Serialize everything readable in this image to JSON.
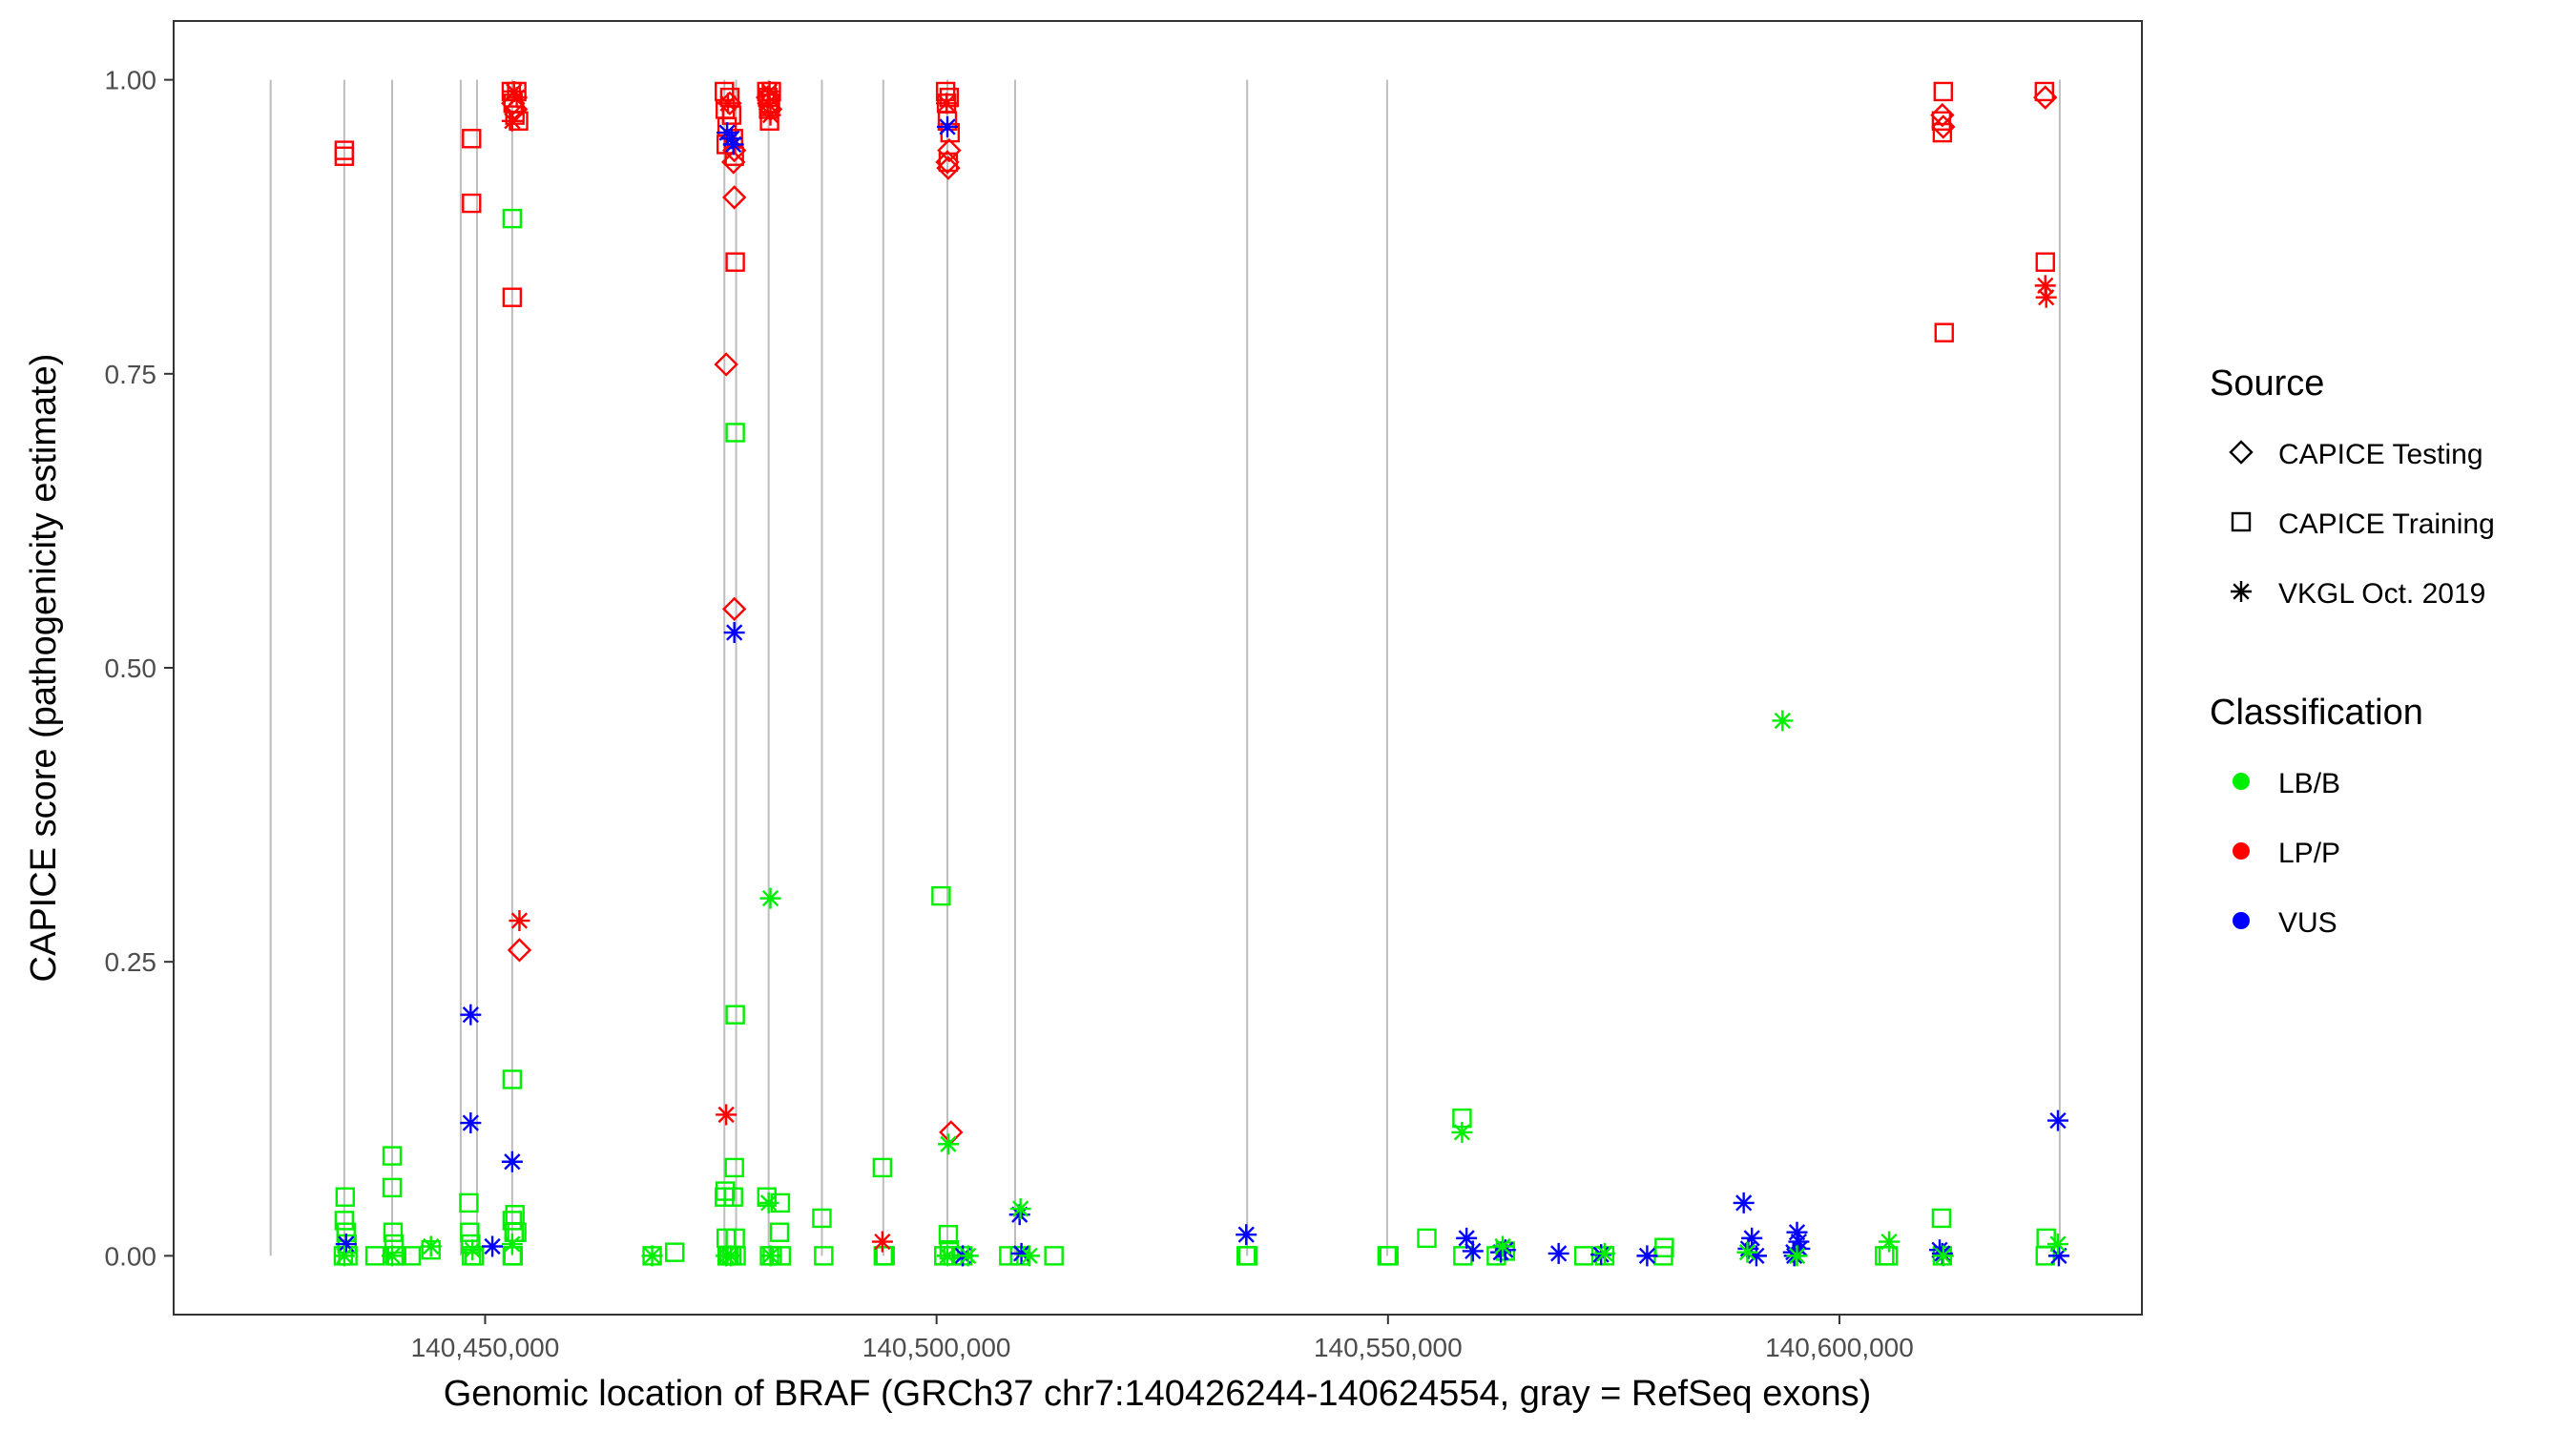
{
  "chart_data": {
    "type": "scatter",
    "title": "",
    "xlabel": "Genomic location of BRAF (GRCh37 chr7:140426244-140624554, gray = RefSeq exons)",
    "ylabel": "CAPICE score (pathogenicity estimate)",
    "xlim": [
      140415500,
      140633500
    ],
    "ylim": [
      -0.05,
      1.05
    ],
    "x_ticks": [
      {
        "value": 140450000,
        "label": "140,450,000"
      },
      {
        "value": 140500000,
        "label": "140,500,000"
      },
      {
        "value": 140550000,
        "label": "140,550,000"
      },
      {
        "value": 140600000,
        "label": "140,600,000"
      }
    ],
    "y_ticks": [
      {
        "value": 0,
        "label": "0.00"
      },
      {
        "value": 0.25,
        "label": "0.25"
      },
      {
        "value": 0.5,
        "label": "0.50"
      },
      {
        "value": 0.75,
        "label": "0.75"
      },
      {
        "value": 1,
        "label": "1.00"
      }
    ],
    "grid": false,
    "exons": [
      140426244,
      140434400,
      140439700,
      140447300,
      140449100,
      140453000,
      140476500,
      140477800,
      140481400,
      140487300,
      140494100,
      140501200,
      140508700,
      140534400,
      140549900,
      140624400
    ],
    "legends": [
      {
        "title": "Source",
        "kind": "shape",
        "position": "right",
        "entries": [
          {
            "label": "CAPICE Testing",
            "marker": "diamond"
          },
          {
            "label": "CAPICE Training",
            "marker": "square"
          },
          {
            "label": "VKGL Oct. 2019",
            "marker": "asterisk"
          }
        ]
      },
      {
        "title": "Classification",
        "kind": "color",
        "position": "right",
        "entries": [
          {
            "label": "LB/B",
            "color": "#00ee00"
          },
          {
            "label": "LP/P",
            "color": "#ff0000"
          },
          {
            "label": "VUS",
            "color": "#0000ff"
          }
        ]
      }
    ],
    "series": [
      {
        "source": "CAPICE Training",
        "marker": "square",
        "classification": "LP/P",
        "color": "#ff0000",
        "points": [
          [
            140434400,
            0.94
          ],
          [
            140434400,
            0.935
          ],
          [
            140448500,
            0.95
          ],
          [
            140448500,
            0.895
          ],
          [
            140452900,
            0.99
          ],
          [
            140453100,
            0.98
          ],
          [
            140453300,
            0.97
          ],
          [
            140453500,
            0.99
          ],
          [
            140453700,
            0.965
          ],
          [
            140453000,
            0.815
          ],
          [
            140476500,
            0.99
          ],
          [
            140476600,
            0.975
          ],
          [
            140476800,
            0.96
          ],
          [
            140476700,
            0.945
          ],
          [
            140477100,
            0.985
          ],
          [
            140477300,
            0.97
          ],
          [
            140477500,
            0.95
          ],
          [
            140477600,
            0.935
          ],
          [
            140477700,
            0.845
          ],
          [
            140481200,
            0.99
          ],
          [
            140481300,
            0.985
          ],
          [
            140481400,
            0.975
          ],
          [
            140481500,
            0.965
          ],
          [
            140481600,
            0.98
          ],
          [
            140481700,
            0.99
          ],
          [
            140501000,
            0.99
          ],
          [
            140501100,
            0.98
          ],
          [
            140501200,
            0.965
          ],
          [
            140501300,
            0.93
          ],
          [
            140501400,
            0.985
          ],
          [
            140501500,
            0.955
          ],
          [
            140611500,
            0.99
          ],
          [
            140611300,
            0.965
          ],
          [
            140611400,
            0.955
          ],
          [
            140611600,
            0.785
          ],
          [
            140622700,
            0.99
          ],
          [
            140622800,
            0.845
          ]
        ]
      },
      {
        "source": "CAPICE Training",
        "marker": "square",
        "classification": "LB/B",
        "color": "#00ee00",
        "points": [
          [
            140434500,
            0.05
          ],
          [
            140434400,
            0.03
          ],
          [
            140434600,
            0.02
          ],
          [
            140434700,
            0.01
          ],
          [
            140434300,
            0.0
          ],
          [
            140434800,
            0.0
          ],
          [
            140437800,
            0.0
          ],
          [
            140439700,
            0.085
          ],
          [
            140439700,
            0.058
          ],
          [
            140439800,
            0.02
          ],
          [
            140439900,
            0.01
          ],
          [
            140440000,
            0.0
          ],
          [
            140440200,
            0.0
          ],
          [
            140441800,
            0.0
          ],
          [
            140444000,
            0.005
          ],
          [
            140448200,
            0.045
          ],
          [
            140448300,
            0.02
          ],
          [
            140448400,
            0.01
          ],
          [
            140448500,
            0.0
          ],
          [
            140448800,
            0.0
          ],
          [
            140453000,
            0.882
          ],
          [
            140453000,
            0.15
          ],
          [
            140453300,
            0.035
          ],
          [
            140453000,
            0.03
          ],
          [
            140453200,
            0.02
          ],
          [
            140453500,
            0.02
          ],
          [
            140453000,
            0.0
          ],
          [
            140453100,
            0.0
          ],
          [
            140468500,
            0.0
          ],
          [
            140471000,
            0.003
          ],
          [
            140476600,
            0.055
          ],
          [
            140476500,
            0.05
          ],
          [
            140476700,
            0.015
          ],
          [
            140476800,
            0.0
          ],
          [
            140477000,
            0.0
          ],
          [
            140477300,
            0.0
          ],
          [
            140477700,
            0.7
          ],
          [
            140477700,
            0.205
          ],
          [
            140477600,
            0.075
          ],
          [
            140477500,
            0.05
          ],
          [
            140477700,
            0.015
          ],
          [
            140477800,
            0.0
          ],
          [
            140481200,
            0.05
          ],
          [
            140481500,
            0.0
          ],
          [
            140481800,
            0.0
          ],
          [
            140482700,
            0.045
          ],
          [
            140482600,
            0.02
          ],
          [
            140482800,
            0.0
          ],
          [
            140487300,
            0.032
          ],
          [
            140487500,
            0.0
          ],
          [
            140494000,
            0.075
          ],
          [
            140494100,
            0.0
          ],
          [
            140494300,
            0.0
          ],
          [
            140500500,
            0.306
          ],
          [
            140500800,
            0.0
          ],
          [
            140501300,
            0.018
          ],
          [
            140501400,
            0.005
          ],
          [
            140501800,
            0.0
          ],
          [
            140502900,
            0.0
          ],
          [
            140508000,
            0.0
          ],
          [
            140509200,
            0.0
          ],
          [
            140513000,
            0.0
          ],
          [
            140534300,
            0.0
          ],
          [
            140534500,
            0.0
          ],
          [
            140549900,
            0.0
          ],
          [
            140550100,
            0.0
          ],
          [
            140554300,
            0.015
          ],
          [
            140558200,
            0.117
          ],
          [
            140558300,
            0.0
          ],
          [
            140562000,
            0.0
          ],
          [
            140563000,
            0.004
          ],
          [
            140571700,
            0.0
          ],
          [
            140574000,
            0.0
          ],
          [
            140580600,
            0.007
          ],
          [
            140580500,
            0.0
          ],
          [
            140605000,
            0.0
          ],
          [
            140605400,
            0.0
          ],
          [
            140611300,
            0.032
          ],
          [
            140611400,
            0.0
          ],
          [
            140622900,
            0.015
          ],
          [
            140622800,
            0.0
          ]
        ]
      },
      {
        "source": "CAPICE Testing",
        "marker": "diamond",
        "classification": "LP/P",
        "color": "#ff0000",
        "points": [
          [
            140453100,
            0.98
          ],
          [
            140453400,
            0.975
          ],
          [
            140453800,
            0.26
          ],
          [
            140476700,
            0.758
          ],
          [
            140477100,
            0.98
          ],
          [
            140477500,
            0.93
          ],
          [
            140477600,
            0.94
          ],
          [
            140477600,
            0.9
          ],
          [
            140477600,
            0.55
          ],
          [
            140481300,
            0.985
          ],
          [
            140481600,
            0.975
          ],
          [
            140501200,
            0.93
          ],
          [
            140501300,
            0.925
          ],
          [
            140501400,
            0.94
          ],
          [
            140501600,
            0.105
          ],
          [
            140611400,
            0.97
          ],
          [
            140611500,
            0.96
          ],
          [
            140622800,
            0.985
          ]
        ]
      },
      {
        "source": "VKGL Oct. 2019",
        "marker": "asterisk",
        "classification": "LP/P",
        "color": "#ff0000",
        "points": [
          [
            140453000,
            0.965
          ],
          [
            140453200,
            0.99
          ],
          [
            140453500,
            0.985
          ],
          [
            140453800,
            0.285
          ],
          [
            140476700,
            0.12
          ],
          [
            140476900,
            0.98
          ],
          [
            140481300,
            0.98
          ],
          [
            140481500,
            0.99
          ],
          [
            140481600,
            0.97
          ],
          [
            140494000,
            0.012
          ],
          [
            140501100,
            0.98
          ],
          [
            140622800,
            0.825
          ],
          [
            140622900,
            0.815
          ]
        ]
      },
      {
        "source": "VKGL Oct. 2019",
        "marker": "asterisk",
        "classification": "VUS",
        "color": "#0000ff",
        "points": [
          [
            140434600,
            0.01
          ],
          [
            140448400,
            0.205
          ],
          [
            140448400,
            0.113
          ],
          [
            140450800,
            0.008
          ],
          [
            140453000,
            0.08
          ],
          [
            140476800,
            0.955
          ],
          [
            140477300,
            0.95
          ],
          [
            140477500,
            0.945
          ],
          [
            140477600,
            0.53
          ],
          [
            140501200,
            0.96
          ],
          [
            140502900,
            0.0
          ],
          [
            140509200,
            0.035
          ],
          [
            140509400,
            0.002
          ],
          [
            140534300,
            0.018
          ],
          [
            140558700,
            0.015
          ],
          [
            140559400,
            0.004
          ],
          [
            140562500,
            0.003
          ],
          [
            140563000,
            0.005
          ],
          [
            140568900,
            0.002
          ],
          [
            140573600,
            0.001
          ],
          [
            140578700,
            0.0
          ],
          [
            140589400,
            0.045
          ],
          [
            140590300,
            0.015
          ],
          [
            140589900,
            0.006
          ],
          [
            140590800,
            0.0
          ],
          [
            140595300,
            0.02
          ],
          [
            140595500,
            0.012
          ],
          [
            140595600,
            0.006
          ],
          [
            140594900,
            0.003
          ],
          [
            140595000,
            0.0
          ],
          [
            140611100,
            0.005
          ],
          [
            140611400,
            0.002
          ],
          [
            140624200,
            0.115
          ],
          [
            140624300,
            0.0
          ]
        ]
      },
      {
        "source": "VKGL Oct. 2019",
        "marker": "asterisk",
        "classification": "LB/B",
        "color": "#00ee00",
        "points": [
          [
            140434400,
            0.0
          ],
          [
            140439700,
            0.0
          ],
          [
            140444000,
            0.008
          ],
          [
            140448600,
            0.005
          ],
          [
            140453000,
            0.01
          ],
          [
            140468500,
            0.0
          ],
          [
            140476700,
            0.0
          ],
          [
            140477200,
            0.0
          ],
          [
            140481600,
            0.304
          ],
          [
            140481400,
            0.045
          ],
          [
            140481600,
            0.0
          ],
          [
            140501300,
            0.095
          ],
          [
            140501200,
            0.0
          ],
          [
            140503500,
            0.0
          ],
          [
            140509300,
            0.04
          ],
          [
            140510300,
            0.0
          ],
          [
            140558200,
            0.105
          ],
          [
            140562700,
            0.008
          ],
          [
            140574000,
            0.002
          ],
          [
            140589800,
            0.003
          ],
          [
            140593700,
            0.455
          ],
          [
            140595300,
            0.0
          ],
          [
            140605500,
            0.012
          ],
          [
            140611500,
            0.0
          ],
          [
            140624200,
            0.01
          ]
        ]
      }
    ]
  }
}
